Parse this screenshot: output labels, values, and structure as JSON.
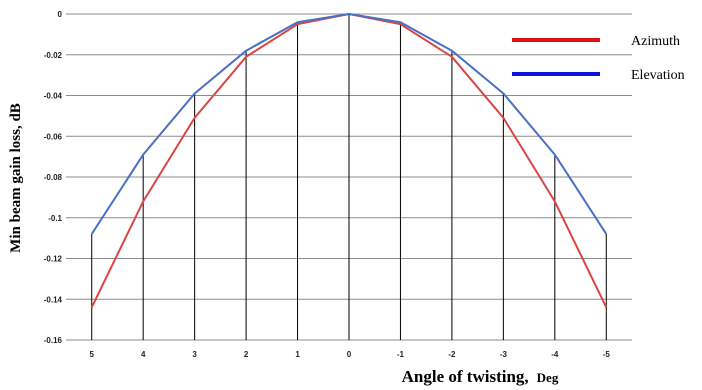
{
  "chart_data": {
    "type": "line",
    "title": "",
    "x": [
      "5",
      "4",
      "3",
      "2",
      "1",
      "0",
      "-1",
      "-2",
      "-3",
      "-4",
      "-5"
    ],
    "series": [
      {
        "name": "Azimuth",
        "color": "#d94545",
        "values": [
          -0.144,
          -0.092,
          -0.051,
          -0.021,
          -0.005,
          0,
          -0.005,
          -0.021,
          -0.051,
          -0.092,
          -0.144
        ]
      },
      {
        "name": "Elevation",
        "color": "#4a70c4",
        "values": [
          -0.108,
          -0.069,
          -0.039,
          -0.018,
          -0.004,
          0,
          -0.004,
          -0.018,
          -0.039,
          -0.069,
          -0.108
        ]
      }
    ],
    "ylabel": "Min beam gain loss, dB",
    "xlabel_main": "Angle of twisting,",
    "xlabel_unit": "Deg",
    "yticks": [
      "0",
      "-0.02",
      "-0.04",
      "-0.06",
      "-0.08",
      "-0.1",
      "-0.12",
      "-0.14",
      "-0.16"
    ],
    "ylim": [
      -0.16,
      0
    ],
    "grid": "horizontal",
    "drop_lines": true,
    "legend_position": "top-right",
    "legend": [
      {
        "label": "Azimuth",
        "color": "#e01010"
      },
      {
        "label": "Elevation",
        "color": "#1010e0"
      }
    ]
  }
}
